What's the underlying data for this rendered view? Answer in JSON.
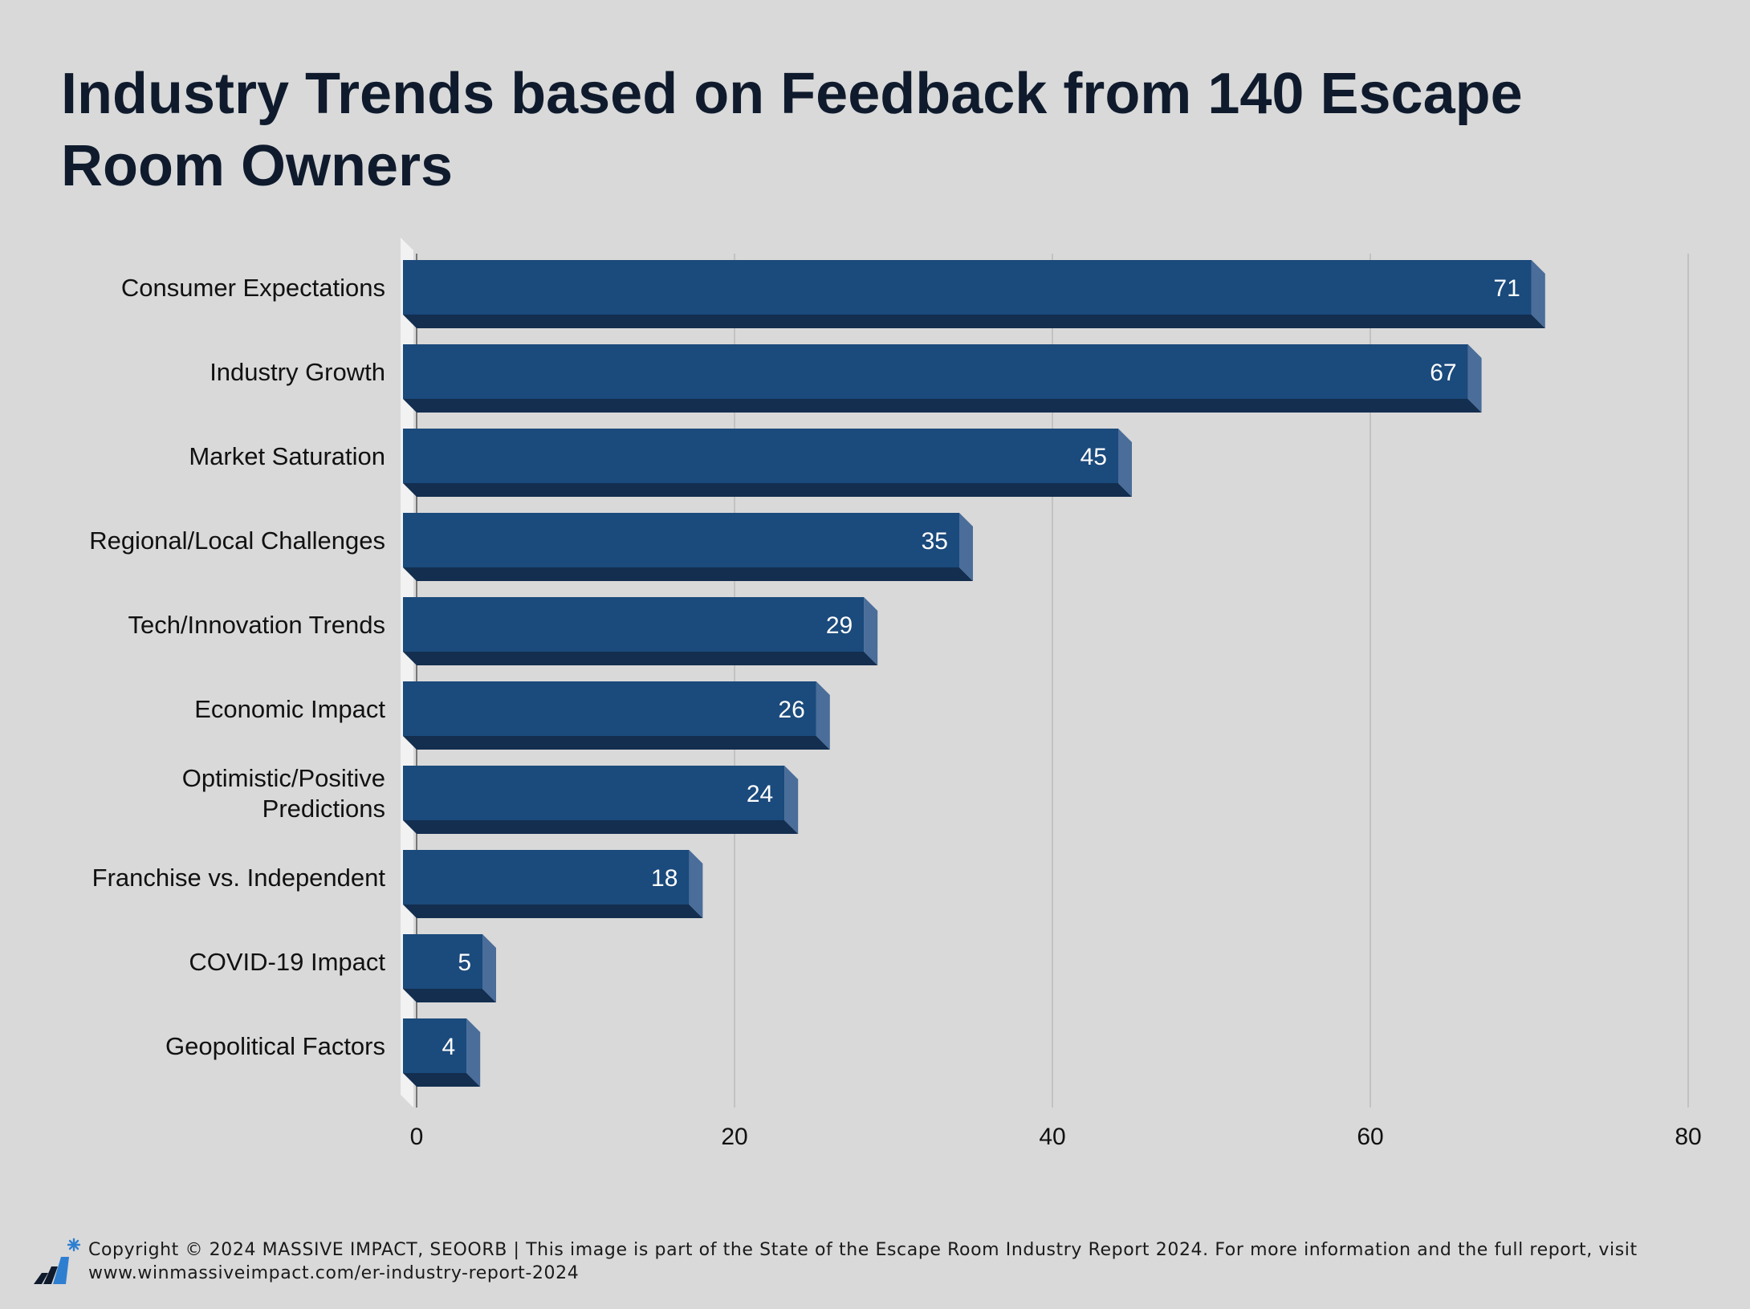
{
  "title": "Industry Trends based on Feedback from 140 Escape Room Owners",
  "chart_data": {
    "type": "bar",
    "orientation": "horizontal",
    "title": "Industry Trends based on Feedback from 140 Escape Room Owners",
    "categories": [
      "Consumer Expectations",
      "Industry Growth",
      "Market Saturation",
      "Regional/Local Challenges",
      "Tech/Innovation Trends",
      "Economic Impact",
      "Optimistic/Positive Predictions",
      "Franchise vs. Independent",
      "COVID-19 Impact",
      "Geopolitical Factors"
    ],
    "category_lines": [
      [
        "Consumer Expectations"
      ],
      [
        "Industry Growth"
      ],
      [
        "Market Saturation"
      ],
      [
        "Regional/Local Challenges"
      ],
      [
        "Tech/Innovation Trends"
      ],
      [
        "Economic Impact"
      ],
      [
        "Optimistic/Positive",
        "Predictions"
      ],
      [
        "Franchise vs. Independent"
      ],
      [
        "COVID-19 Impact"
      ],
      [
        "Geopolitical Factors"
      ]
    ],
    "values": [
      71,
      67,
      45,
      35,
      29,
      26,
      24,
      18,
      5,
      4
    ],
    "xlim": [
      0,
      80
    ],
    "xticks": [
      0,
      20,
      40,
      60,
      80
    ],
    "xlabel": "",
    "ylabel": "",
    "grid": true,
    "data_labels": true,
    "style": "3d",
    "colors": {
      "bar_front": "#1b4a7c",
      "bar_bottom": "#132e4f",
      "bar_side": "#4a6d9a",
      "grid": "#b3b3b3",
      "label_text": "#111111",
      "value_text": "#ffffff",
      "axis_wall": "#f2f2f2"
    }
  },
  "footer": {
    "logo_icon": "massive-impact-logo-icon",
    "text": "Copyright © 2024 MASSIVE IMPACT, SEOORB | This image is part of the State of the Escape Room Industry Report 2024. For more information and the full report, visit www.winmassiveimpact.com/er-industry-report-2024"
  }
}
